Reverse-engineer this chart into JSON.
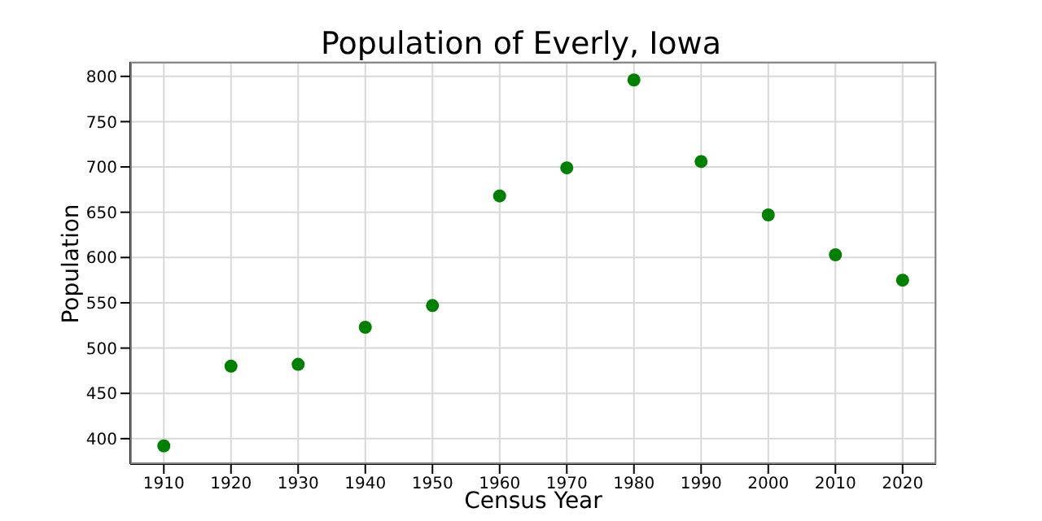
{
  "chart_data": {
    "type": "scatter",
    "title": "Population of Everly, Iowa",
    "xlabel": "Census Year",
    "ylabel": "Population",
    "x": [
      1910,
      1920,
      1930,
      1940,
      1950,
      1960,
      1970,
      1980,
      1990,
      2000,
      2010,
      2020
    ],
    "values": [
      392,
      480,
      482,
      523,
      547,
      668,
      699,
      796,
      706,
      647,
      603,
      575
    ],
    "color": "#008000",
    "marker": "circle",
    "grid": true,
    "xlim": [
      1905,
      2025
    ],
    "xticks": [
      1910,
      1920,
      1930,
      1940,
      1950,
      1960,
      1970,
      1980,
      1990,
      2000,
      2010,
      2020
    ],
    "ylim": [
      372,
      816
    ],
    "yticks": [
      400,
      450,
      500,
      550,
      600,
      650,
      700,
      750,
      800
    ]
  }
}
